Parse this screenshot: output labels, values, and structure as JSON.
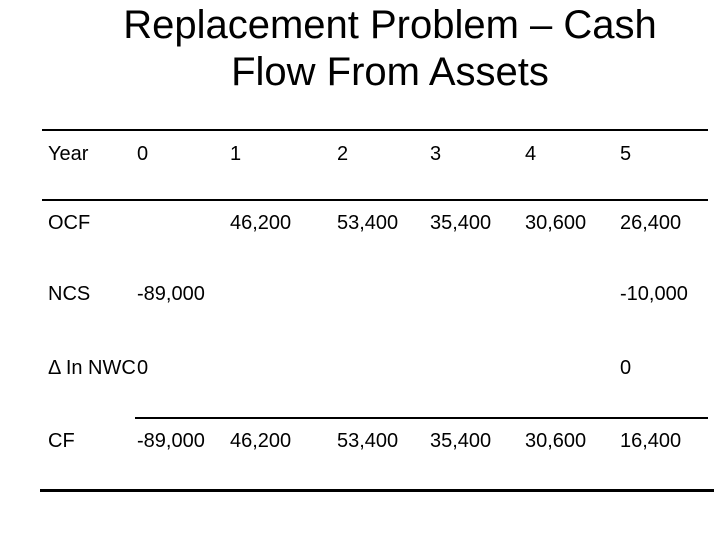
{
  "slide": {
    "title_line1": "Replacement Problem – Cash",
    "title_line2": "Flow From Assets"
  },
  "table": {
    "header": {
      "label": "Year",
      "years": [
        "0",
        "1",
        "2",
        "3",
        "4",
        "5"
      ]
    },
    "rows": [
      {
        "label": "OCF",
        "values": [
          "",
          "46,200",
          "53,400",
          "35,400",
          "30,600",
          "26,400"
        ]
      },
      {
        "label": "NCS",
        "values": [
          "-89,000",
          "",
          "",
          "",
          "",
          "-10,000"
        ]
      },
      {
        "label": "Δ In NWC",
        "values": [
          "0",
          "",
          "",
          "",
          "",
          "0"
        ]
      },
      {
        "label": "CF",
        "values": [
          "-89,000",
          "46,200",
          "53,400",
          "35,400",
          "30,600",
          "16,400"
        ]
      }
    ]
  },
  "colors": {
    "background": "#ffffff",
    "text": "#000000",
    "rule": "#000000"
  }
}
